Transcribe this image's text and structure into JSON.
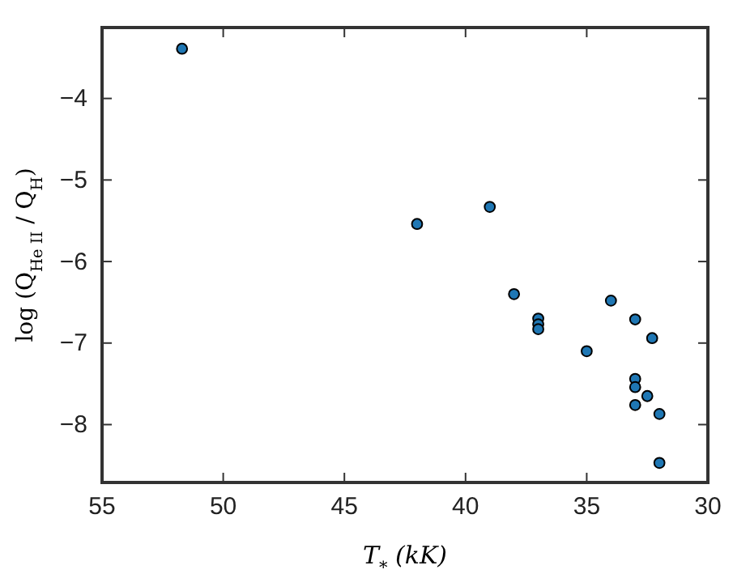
{
  "chart_data": {
    "type": "scatter",
    "xlabel": "T$_{*}$ (kK)",
    "ylabel": "log (Q$_{He II}$ / Q$_{H}$)",
    "x": [
      51.7,
      42.0,
      39.0,
      38.0,
      37.0,
      37.0,
      37.0,
      35.0,
      34.0,
      33.0,
      32.3,
      33.0,
      33.0,
      32.5,
      33.0,
      32.0,
      32.0
    ],
    "series": [
      {
        "color": "#1f77b4",
        "values": [
          -3.39,
          -5.54,
          -5.33,
          -6.4,
          -6.7,
          -6.77,
          -6.83,
          -7.1,
          -6.48,
          -6.71,
          -6.94,
          -7.44,
          -7.54,
          -7.65,
          -7.76,
          -7.87,
          -8.47
        ]
      }
    ],
    "xlim": [
      55,
      30
    ],
    "xticks": [
      55,
      50,
      45,
      40,
      35,
      30
    ],
    "ylim": [
      -8.71,
      -3.13
    ],
    "yticks": [
      {
        "value": -8,
        "label": "−8"
      },
      {
        "value": -7,
        "label": "−7"
      },
      {
        "value": -6,
        "label": "−6"
      },
      {
        "value": -5,
        "label": "−5"
      },
      {
        "value": -4,
        "label": "−4"
      }
    ],
    "marker": "circle",
    "grid": false
  }
}
